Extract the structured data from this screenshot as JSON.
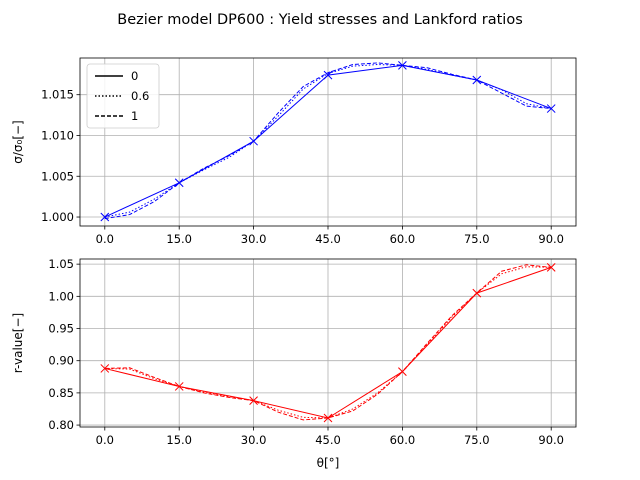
{
  "title": "Bezier model DP600 : Yield stresses and Lankford ratios",
  "chart_data": [
    {
      "type": "line",
      "ylabel": "σ/σ₀[−]",
      "xlabel": "",
      "xlim": [
        -5,
        95
      ],
      "ylim": [
        0.9989,
        1.0195
      ],
      "grid": true,
      "x_ticks": [
        0,
        15,
        30,
        45,
        60,
        75,
        90
      ],
      "x_tick_labels": [
        "0.0",
        "15.0",
        "30.0",
        "45.0",
        "60.0",
        "75.0",
        "90.0"
      ],
      "y_ticks": [
        1.0,
        1.005,
        1.01,
        1.015
      ],
      "y_tick_labels": [
        "1.000",
        "1.005",
        "1.010",
        "1.015"
      ],
      "color": "#0000ff",
      "legend": {
        "placement": "top-left",
        "entries": [
          {
            "label": "0",
            "style": "solid"
          },
          {
            "label": "0.6",
            "style": "dotted"
          },
          {
            "label": "1",
            "style": "dashed"
          }
        ]
      },
      "markers": {
        "x": [
          0,
          15,
          30,
          45,
          60,
          75,
          90
        ],
        "y": [
          1.0,
          1.0042,
          1.0093,
          1.0174,
          1.0186,
          1.0168,
          1.0133
        ]
      },
      "series": [
        {
          "name": "0",
          "style": "solid",
          "x": [
            0,
            15,
            30,
            45,
            60,
            75,
            90
          ],
          "y": [
            1.0,
            1.0042,
            1.0093,
            1.0174,
            1.0186,
            1.0168,
            1.0133
          ]
        },
        {
          "name": "0.6",
          "style": "dotted",
          "x": [
            0,
            5,
            10,
            15,
            20,
            25,
            30,
            35,
            40,
            45,
            50,
            55,
            60,
            65,
            70,
            75,
            80,
            85,
            90
          ],
          "y": [
            1.0,
            1.0006,
            1.0022,
            1.0042,
            1.0058,
            1.0073,
            1.0093,
            1.0124,
            1.0157,
            1.0176,
            1.0185,
            1.0187,
            1.0186,
            1.0181,
            1.0174,
            1.0168,
            1.0156,
            1.0139,
            1.0133
          ]
        },
        {
          "name": "1",
          "style": "dashed",
          "x": [
            0,
            5,
            10,
            15,
            20,
            25,
            30,
            35,
            40,
            45,
            50,
            55,
            60,
            65,
            70,
            75,
            80,
            85,
            90
          ],
          "y": [
            0.9998,
            1.0003,
            1.0019,
            1.0042,
            1.006,
            1.0075,
            1.0093,
            1.0128,
            1.016,
            1.0177,
            1.0187,
            1.0189,
            1.0186,
            1.0183,
            1.0175,
            1.0168,
            1.0152,
            1.0136,
            1.0133
          ]
        }
      ]
    },
    {
      "type": "line",
      "ylabel": "r-value[−]",
      "xlabel": "θ[°]",
      "xlim": [
        -5,
        95
      ],
      "ylim": [
        0.797,
        1.058
      ],
      "grid": true,
      "x_ticks": [
        0,
        15,
        30,
        45,
        60,
        75,
        90
      ],
      "x_tick_labels": [
        "0.0",
        "15.0",
        "30.0",
        "45.0",
        "60.0",
        "75.0",
        "90.0"
      ],
      "y_ticks": [
        0.8,
        0.85,
        0.9,
        0.95,
        1.0,
        1.05
      ],
      "y_tick_labels": [
        "0.80",
        "0.85",
        "0.90",
        "0.95",
        "1.00",
        "1.05"
      ],
      "color": "#ff0000",
      "markers": {
        "x": [
          0,
          15,
          30,
          45,
          60,
          75,
          90
        ],
        "y": [
          0.888,
          0.86,
          0.838,
          0.811,
          0.883,
          1.005,
          1.045
        ]
      },
      "series": [
        {
          "name": "0",
          "style": "solid",
          "x": [
            0,
            15,
            30,
            45,
            60,
            75,
            90
          ],
          "y": [
            0.888,
            0.86,
            0.838,
            0.811,
            0.883,
            1.005,
            1.045
          ]
        },
        {
          "name": "0.6",
          "style": "dotted",
          "x": [
            0,
            5,
            10,
            15,
            20,
            25,
            30,
            35,
            40,
            45,
            50,
            55,
            60,
            65,
            70,
            75,
            80,
            85,
            90
          ],
          "y": [
            0.888,
            0.887,
            0.872,
            0.86,
            0.851,
            0.844,
            0.838,
            0.823,
            0.812,
            0.811,
            0.825,
            0.85,
            0.883,
            0.925,
            0.968,
            1.005,
            1.035,
            1.046,
            1.045
          ]
        },
        {
          "name": "1",
          "style": "dashed",
          "x": [
            0,
            5,
            10,
            15,
            20,
            25,
            30,
            35,
            40,
            45,
            50,
            55,
            60,
            65,
            70,
            75,
            80,
            85,
            90
          ],
          "y": [
            0.888,
            0.889,
            0.874,
            0.86,
            0.85,
            0.843,
            0.838,
            0.82,
            0.808,
            0.811,
            0.822,
            0.848,
            0.883,
            0.927,
            0.97,
            1.005,
            1.039,
            1.049,
            1.045
          ]
        }
      ]
    }
  ]
}
